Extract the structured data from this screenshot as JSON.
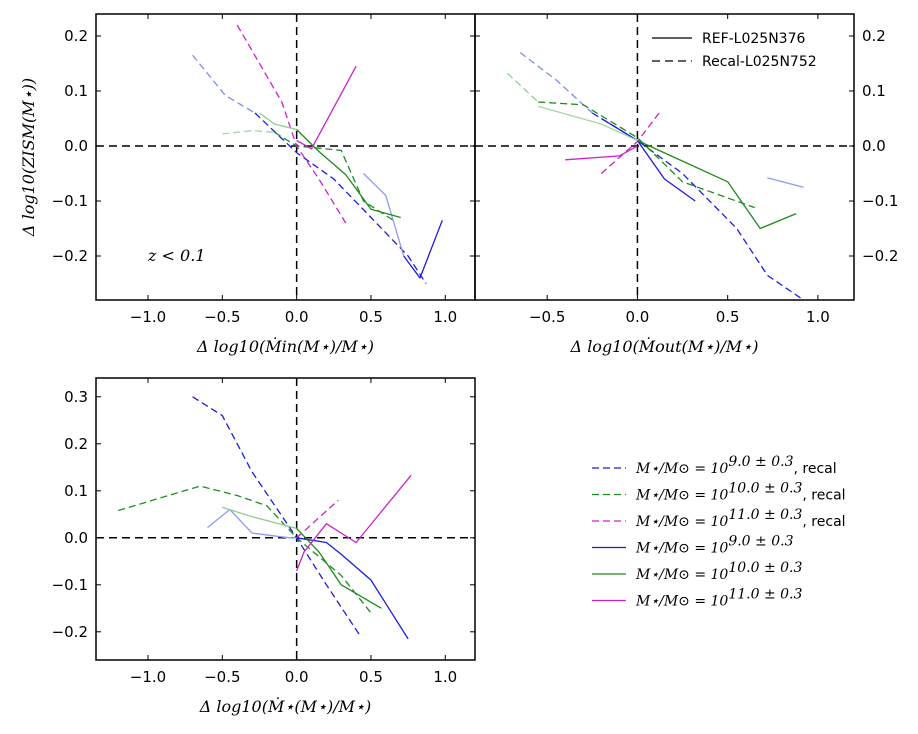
{
  "chart_data": [
    {
      "type": "line",
      "panel": "top-left",
      "xlabel": "Δ log10(Ṁin(M⋆)/M⋆)",
      "ylabel": "Δ log10(ZISM(M⋆))",
      "xlim": [
        -1.35,
        1.2
      ],
      "ylim": [
        -0.28,
        0.24
      ],
      "xticks": [
        "−1.0",
        "−0.5",
        "0.0",
        "0.5",
        "1.0"
      ],
      "yticks": [
        "0.2",
        "0.1",
        "0.0",
        "−0.1",
        "−0.2"
      ],
      "annotation": "z < 0.1",
      "series": [
        {
          "name": "M⋆/M⊙ = 10^(9.0±0.3), recal",
          "color": "#7a8ff0",
          "style": "dashed",
          "x": [
            -0.7,
            -0.48,
            -0.28
          ],
          "y": [
            0.165,
            0.092,
            0.06
          ]
        },
        {
          "name": "M⋆/M⊙ = 10^(9.0±0.3), recal",
          "color": "#1a1ae6",
          "style": "dashed",
          "x": [
            -0.28,
            0.0,
            0.25,
            0.5,
            0.75,
            0.87
          ],
          "y": [
            0.06,
            -0.012,
            -0.06,
            -0.13,
            -0.2,
            -0.25
          ]
        },
        {
          "name": "M⋆/M⊙ = 10^(10.0±0.3), recal",
          "color": "#a3d6a3",
          "style": "dashed",
          "x": [
            -0.5,
            -0.3,
            -0.15
          ],
          "y": [
            0.022,
            0.028,
            0.025
          ]
        },
        {
          "name": "M⋆/M⊙ = 10^(10.0±0.3), recal",
          "color": "#1f8c1f",
          "style": "dashed",
          "x": [
            -0.15,
            0.0,
            0.3,
            0.45,
            0.65
          ],
          "y": [
            0.025,
            0.0,
            -0.008,
            -0.1,
            -0.135
          ]
        },
        {
          "name": "M⋆/M⊙ = 10^(11.0±0.3), recal",
          "color": "#cc22cc",
          "style": "dashed",
          "x": [
            -0.4,
            -0.1,
            0.0,
            0.15,
            0.33
          ],
          "y": [
            0.22,
            0.08,
            0.0,
            -0.06,
            -0.14
          ]
        },
        {
          "name": "M⋆/M⊙ = 10^(9.0±0.3)",
          "color": "#8f99f0",
          "style": "solid",
          "x": [
            0.45,
            0.6,
            0.72
          ],
          "y": [
            -0.05,
            -0.09,
            -0.2
          ]
        },
        {
          "name": "M⋆/M⊙ = 10^(9.0±0.3)",
          "color": "#1a1ae6",
          "style": "solid",
          "x": [
            0.72,
            0.83,
            0.98
          ],
          "y": [
            -0.2,
            -0.24,
            -0.135
          ]
        },
        {
          "name": "M⋆/M⊙ = 10^(10.0±0.3)",
          "color": "#8fcc8f",
          "style": "solid",
          "x": [
            -0.25,
            -0.15,
            0.0
          ],
          "y": [
            0.06,
            0.04,
            0.03
          ]
        },
        {
          "name": "M⋆/M⊙ = 10^(10.0±0.3)",
          "color": "#1f8c1f",
          "style": "solid",
          "x": [
            0.0,
            0.15,
            0.33,
            0.5,
            0.7
          ],
          "y": [
            0.03,
            -0.01,
            -0.052,
            -0.115,
            -0.13
          ]
        },
        {
          "name": "M⋆/M⊙ = 10^(11.0±0.3)",
          "color": "#cc22cc",
          "style": "solid",
          "x": [
            0.0,
            0.1,
            0.4
          ],
          "y": [
            0.01,
            -0.005,
            0.145
          ]
        }
      ]
    },
    {
      "type": "line",
      "panel": "top-right",
      "xlabel": "Δ log10(Ṁout(M⋆)/M⋆)",
      "ylabel": "",
      "xlim": [
        -0.9,
        1.2
      ],
      "ylim": [
        -0.28,
        0.24
      ],
      "xticks": [
        "−0.5",
        "0.0",
        "0.5",
        "1.0"
      ],
      "yticks": [
        "0.2",
        "0.1",
        "0.0",
        "−0.1",
        "−0.2"
      ],
      "legend": {
        "entries": [
          "REF-L025N376",
          "Recal-L025N752"
        ],
        "styles": [
          "solid",
          "dashed"
        ]
      },
      "series": [
        {
          "name": "M⋆/M⊙ = 10^(9.0±0.3), recal",
          "color": "#7a8ff0",
          "style": "dashed",
          "x": [
            -0.65,
            -0.45,
            -0.25
          ],
          "y": [
            0.17,
            0.12,
            0.06
          ]
        },
        {
          "name": "M⋆/M⊙ = 10^(9.0±0.3), recal",
          "color": "#1a1ae6",
          "style": "dashed",
          "x": [
            -0.25,
            0.0,
            0.25,
            0.55,
            0.72,
            0.92
          ],
          "y": [
            0.06,
            0.01,
            -0.05,
            -0.15,
            -0.235,
            -0.28
          ]
        },
        {
          "name": "M⋆/M⊙ = 10^(10.0±0.3), recal",
          "color": "#8fcc8f",
          "style": "dashed",
          "x": [
            -0.72,
            -0.55
          ],
          "y": [
            0.132,
            0.08
          ]
        },
        {
          "name": "M⋆/M⊙ = 10^(10.0±0.3), recal",
          "color": "#1f8c1f",
          "style": "dashed",
          "x": [
            -0.55,
            -0.3,
            0.0,
            0.25,
            0.65
          ],
          "y": [
            0.08,
            0.075,
            0.015,
            -0.065,
            -0.112
          ]
        },
        {
          "name": "M⋆/M⊙ = 10^(11.0±0.3), recal",
          "color": "#cc22cc",
          "style": "dashed",
          "x": [
            -0.2,
            0.0,
            0.12
          ],
          "y": [
            -0.05,
            0.008,
            0.06
          ]
        },
        {
          "name": "M⋆/M⊙ = 10^(9.0±0.3)",
          "color": "#8f99f0",
          "style": "solid",
          "x": [
            0.72,
            0.92
          ],
          "y": [
            -0.058,
            -0.075
          ]
        },
        {
          "name": "M⋆/M⊙ = 10^(9.0±0.3)",
          "color": "#1a1ae6",
          "style": "solid",
          "x": [
            -0.2,
            0.0,
            0.15,
            0.32
          ],
          "y": [
            0.05,
            0.01,
            -0.06,
            -0.1
          ]
        },
        {
          "name": "M⋆/M⊙ = 10^(10.0±0.3)",
          "color": "#a3d6a3",
          "style": "solid",
          "x": [
            -0.55,
            -0.2,
            0.0
          ],
          "y": [
            0.072,
            0.04,
            0.01
          ]
        },
        {
          "name": "M⋆/M⊙ = 10^(10.0±0.3)",
          "color": "#1f8c1f",
          "style": "solid",
          "x": [
            0.0,
            0.2,
            0.5,
            0.68,
            0.88
          ],
          "y": [
            0.01,
            -0.02,
            -0.065,
            -0.15,
            -0.123
          ]
        },
        {
          "name": "M⋆/M⊙ = 10^(11.0±0.3)",
          "color": "#cc22cc",
          "style": "solid",
          "x": [
            -0.4,
            -0.1,
            0.0
          ],
          "y": [
            -0.025,
            -0.018,
            0.0
          ]
        }
      ]
    },
    {
      "type": "line",
      "panel": "bottom-left",
      "xlabel": "Δ log10(Ṁ⋆(M⋆)/M⋆)",
      "ylabel": "",
      "xlim": [
        -1.35,
        1.2
      ],
      "ylim": [
        -0.26,
        0.34
      ],
      "xticks": [
        "−1.0",
        "−0.5",
        "0.0",
        "0.5",
        "1.0"
      ],
      "yticks": [
        "0.3",
        "0.2",
        "0.1",
        "0.0",
        "−0.1",
        "−0.2"
      ],
      "series": [
        {
          "name": "M⋆/M⊙ = 10^(9.0±0.3), recal",
          "color": "#1a1ae6",
          "style": "dashed",
          "x": [
            -0.7,
            -0.5,
            -0.3,
            0.0,
            0.2,
            0.43
          ],
          "y": [
            0.3,
            0.26,
            0.14,
            0.0,
            -0.1,
            -0.21
          ]
        },
        {
          "name": "M⋆/M⊙ = 10^(10.0±0.3), recal",
          "color": "#1f8c1f",
          "style": "dashed",
          "x": [
            -1.2,
            -0.65,
            -0.4,
            -0.2,
            0.0,
            0.3,
            0.5
          ],
          "y": [
            0.058,
            0.11,
            0.09,
            0.068,
            0.0,
            -0.08,
            -0.16
          ]
        },
        {
          "name": "M⋆/M⊙ = 10^(11.0±0.3), recal",
          "color": "#cc22cc",
          "style": "dashed",
          "x": [
            0.0,
            0.28
          ],
          "y": [
            0.0,
            0.08
          ]
        },
        {
          "name": "M⋆/M⊙ = 10^(9.0±0.3)",
          "color": "#8f99f0",
          "style": "solid",
          "x": [
            -0.6,
            -0.45,
            -0.3,
            -0.05,
            0.0
          ],
          "y": [
            0.022,
            0.06,
            0.01,
            0.0,
            0.0
          ]
        },
        {
          "name": "M⋆/M⊙ = 10^(9.0±0.3)",
          "color": "#1a1ae6",
          "style": "solid",
          "x": [
            0.0,
            0.2,
            0.3,
            0.5,
            0.75
          ],
          "y": [
            0.0,
            -0.01,
            -0.035,
            -0.09,
            -0.215
          ]
        },
        {
          "name": "M⋆/M⊙ = 10^(10.0±0.3)",
          "color": "#8fcc8f",
          "style": "solid",
          "x": [
            -0.5,
            -0.3,
            0.0
          ],
          "y": [
            0.065,
            0.045,
            0.02
          ]
        },
        {
          "name": "M⋆/M⊙ = 10^(10.0±0.3)",
          "color": "#1f8c1f",
          "style": "solid",
          "x": [
            0.0,
            0.15,
            0.3,
            0.57
          ],
          "y": [
            0.02,
            -0.03,
            -0.1,
            -0.15
          ]
        },
        {
          "name": "M⋆/M⊙ = 10^(11.0±0.3)",
          "color": "#cc22cc",
          "style": "solid",
          "x": [
            0.0,
            0.05,
            0.2,
            0.4,
            0.77
          ],
          "y": [
            -0.07,
            -0.03,
            0.03,
            -0.01,
            0.133
          ]
        }
      ]
    }
  ],
  "legend": {
    "entries": [
      {
        "label": "M⋆/M⊙ = 10^(9.0±0.3), recal",
        "math": "M⋆/M⊙ = 10",
        "exp": "9.0 ± 0.3",
        "suffix": ", recal",
        "color": "#1a1ae6",
        "style": "dashed"
      },
      {
        "label": "M⋆/M⊙ = 10^(10.0±0.3), recal",
        "math": "M⋆/M⊙ = 10",
        "exp": "10.0 ± 0.3",
        "suffix": ", recal",
        "color": "#1f8c1f",
        "style": "dashed"
      },
      {
        "label": "M⋆/M⊙ = 10^(11.0±0.3), recal",
        "math": "M⋆/M⊙ = 10",
        "exp": "11.0 ± 0.3",
        "suffix": ", recal",
        "color": "#cc22cc",
        "style": "dashed"
      },
      {
        "label": "M⋆/M⊙ = 10^(9.0±0.3)",
        "math": "M⋆/M⊙ = 10",
        "exp": "9.0 ± 0.3",
        "suffix": "",
        "color": "#1a1ae6",
        "style": "solid"
      },
      {
        "label": "M⋆/M⊙ = 10^(10.0±0.3)",
        "math": "M⋆/M⊙ = 10",
        "exp": "10.0 ± 0.3",
        "suffix": "",
        "color": "#1f8c1f",
        "style": "solid"
      },
      {
        "label": "M⋆/M⊙ = 10^(11.0±0.3)",
        "math": "M⋆/M⊙ = 10",
        "exp": "11.0 ± 0.3",
        "suffix": "",
        "color": "#cc22cc",
        "style": "solid"
      }
    ]
  }
}
